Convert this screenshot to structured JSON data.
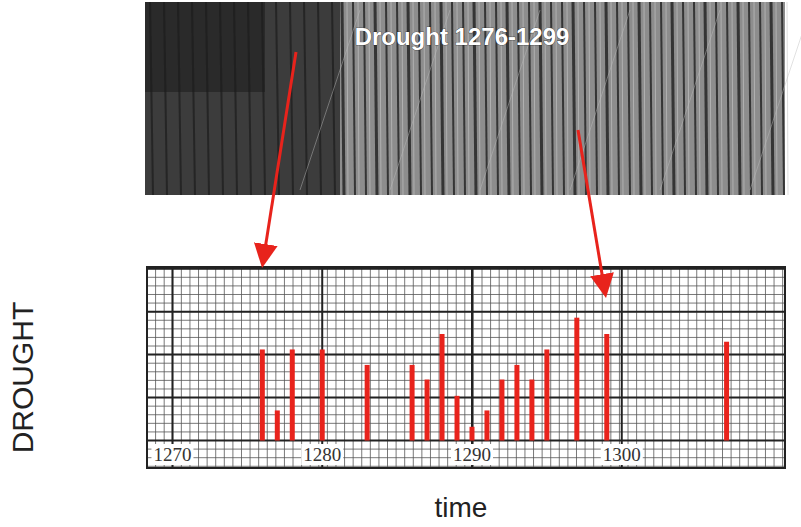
{
  "chart_data": {
    "type": "bar",
    "annotation": "Drought 1276-1299",
    "x_label": "time",
    "y_label": "DROUGHT",
    "x": [
      1276,
      1277,
      1278,
      1280,
      1283,
      1286,
      1287,
      1288,
      1289,
      1290,
      1291,
      1292,
      1293,
      1294,
      1295,
      1297,
      1299,
      1307
    ],
    "values": [
      10.6,
      3.5,
      10.6,
      10.6,
      8.8,
      8.8,
      7.1,
      12.4,
      5.2,
      1.6,
      3.5,
      7.1,
      8.8,
      7.1,
      10.6,
      14.3,
      12.4,
      11.5
    ],
    "color": "#e8231c",
    "xlim": [
      1268.3,
      1310.9
    ],
    "ylim": [
      -3.2,
      20.2
    ],
    "xticks": [
      1270,
      1280,
      1290,
      1300
    ],
    "yticks": [
      0,
      5,
      10,
      15,
      20
    ],
    "grid": true,
    "tick_labels": "x"
  }
}
